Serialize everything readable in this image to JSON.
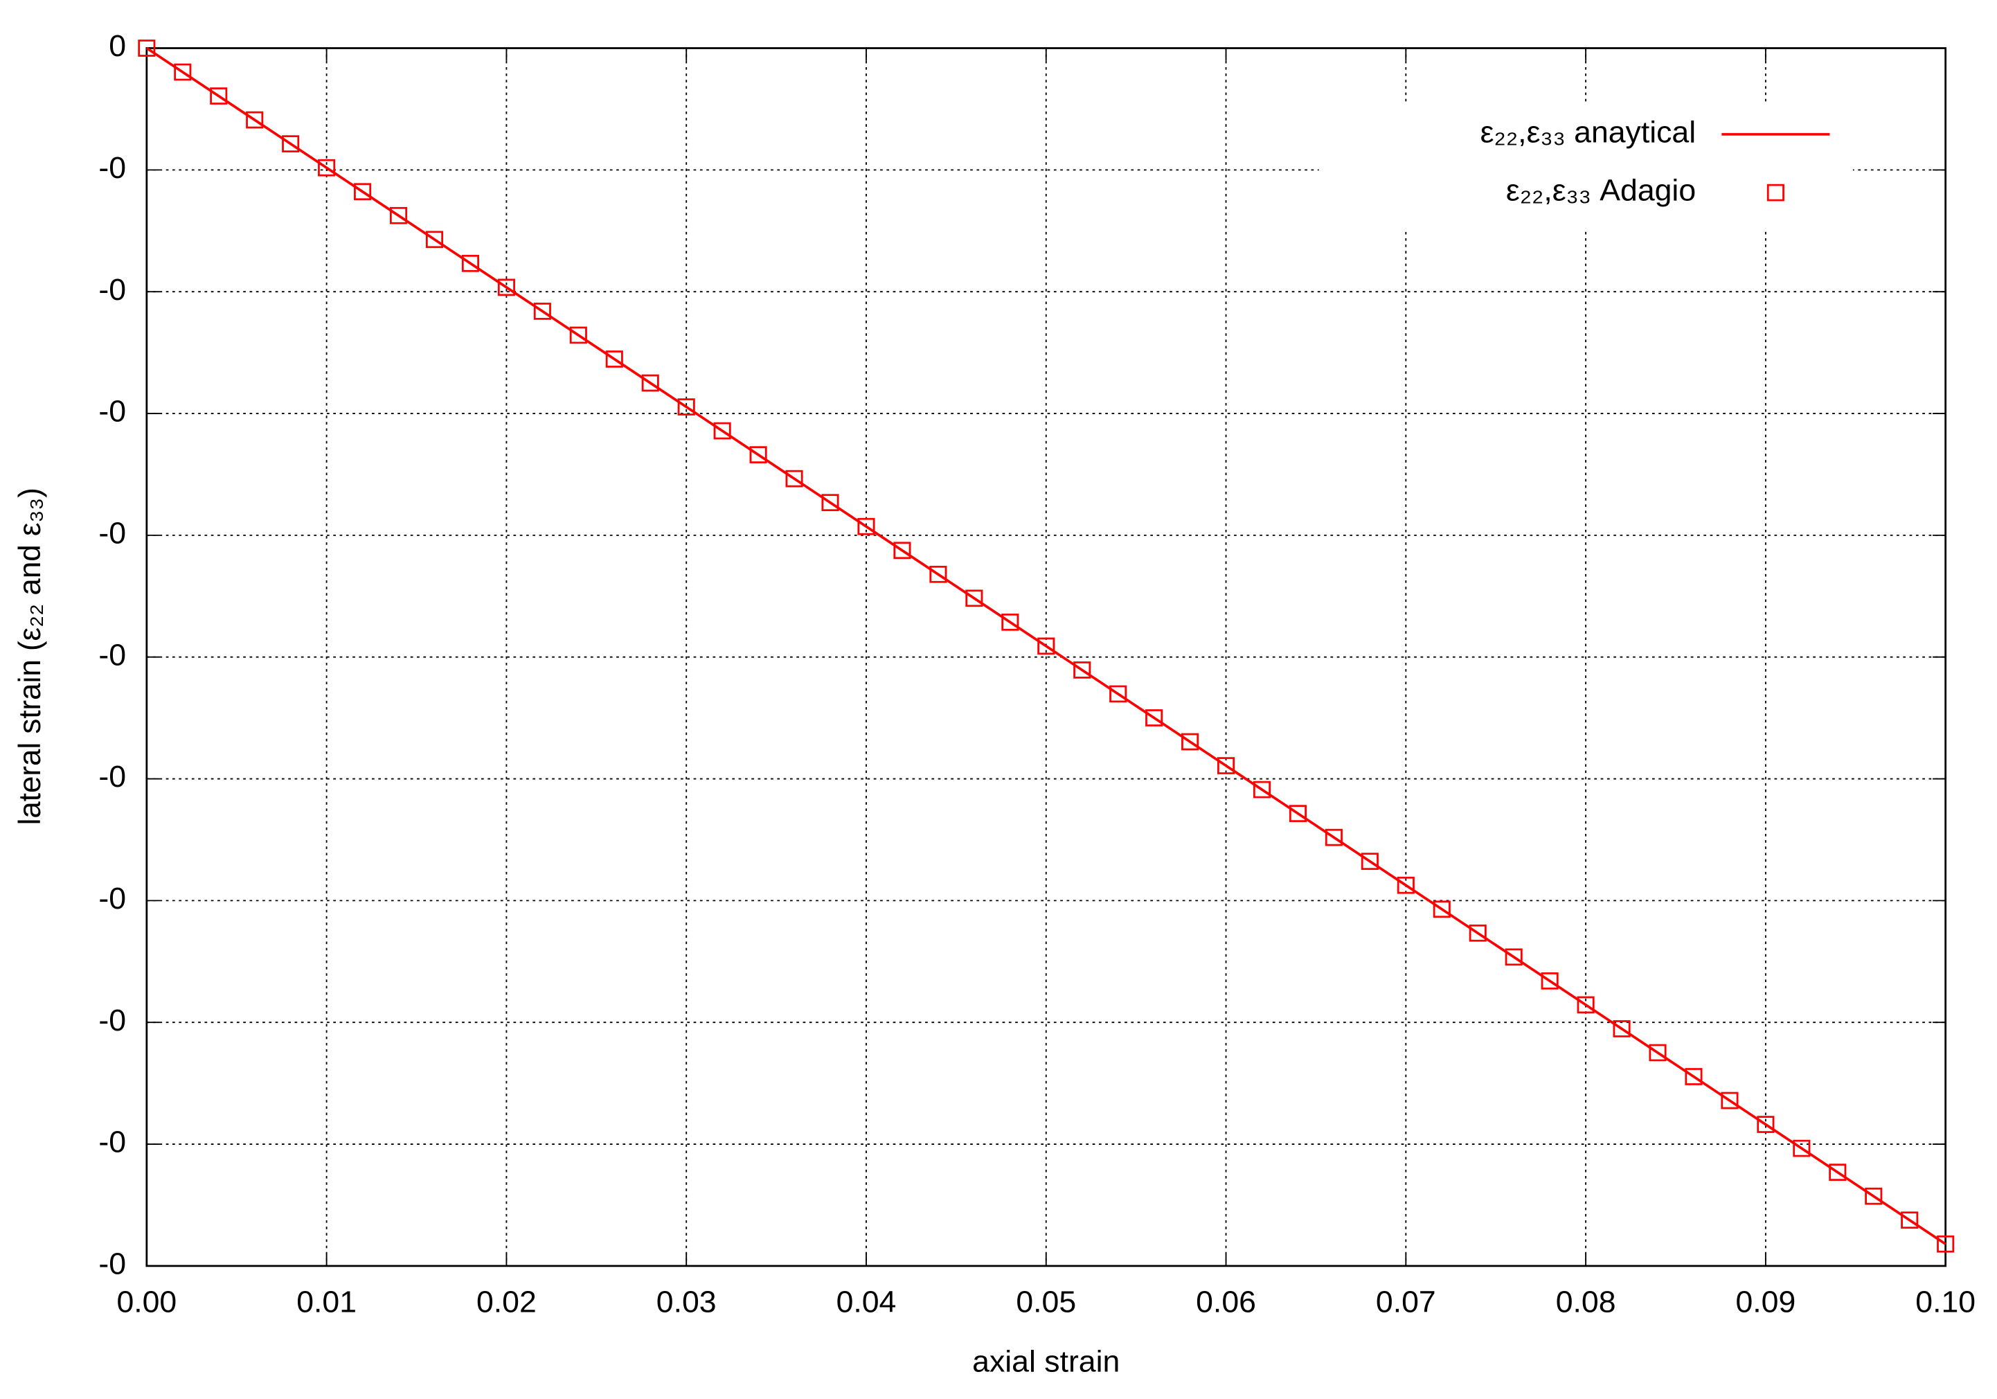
{
  "chart_data": {
    "type": "line",
    "xlabel": "axial strain",
    "ylabel": "lateral strain (ε₂₂ and ε₃₃)",
    "xlim": [
      0,
      0.1
    ],
    "ylim": [
      -0.05,
      0
    ],
    "xticks": [
      {
        "value": 0,
        "label": "0.00"
      },
      {
        "value": 0.01,
        "label": "0.01"
      },
      {
        "value": 0.02,
        "label": "0.02"
      },
      {
        "value": 0.03,
        "label": "0.03"
      },
      {
        "value": 0.04,
        "label": "0.04"
      },
      {
        "value": 0.05,
        "label": "0.05"
      },
      {
        "value": 0.06,
        "label": "0.06"
      },
      {
        "value": 0.07,
        "label": "0.07"
      },
      {
        "value": 0.08,
        "label": "0.08"
      },
      {
        "value": 0.09,
        "label": "0.09"
      },
      {
        "value": 0.1,
        "label": "0.10"
      }
    ],
    "yticks": [
      0,
      {
        "value": -0.005,
        "label": "-0"
      },
      {
        "value": -0.01,
        "label": "-0"
      },
      {
        "value": -0.015,
        "label": "-0"
      },
      {
        "value": -0.02,
        "label": "-0"
      },
      {
        "value": -0.025,
        "label": "-0"
      },
      {
        "value": -0.03,
        "label": "-0"
      },
      {
        "value": -0.035,
        "label": "-0"
      },
      {
        "value": -0.04,
        "label": "-0"
      },
      {
        "value": -0.045,
        "label": "-0"
      },
      {
        "value": -0.05,
        "label": "-0"
      }
    ],
    "grid": true,
    "legend": "upper right",
    "series": [
      {
        "name": "ε₂₂,ε₃₃ anaytical",
        "color": "#ff0000",
        "style": "line",
        "x": [
          0,
          0.1
        ],
        "values": [
          0,
          -0.0491
        ]
      },
      {
        "name": "ε₂₂,ε₃₃ Adagio",
        "color": "#ff0000",
        "style": "points",
        "x": [
          0,
          0.002,
          0.004,
          0.006,
          0.008,
          0.01,
          0.012,
          0.014,
          0.016,
          0.018,
          0.02,
          0.022,
          0.024,
          0.026,
          0.028,
          0.03,
          0.032,
          0.034,
          0.036,
          0.038,
          0.04,
          0.042,
          0.044,
          0.046,
          0.048,
          0.05,
          0.052,
          0.054,
          0.056,
          0.058,
          0.06,
          0.062,
          0.064,
          0.066,
          0.068,
          0.07,
          0.072,
          0.074,
          0.076,
          0.078,
          0.08,
          0.082,
          0.084,
          0.086,
          0.088,
          0.09,
          0.092,
          0.094,
          0.096,
          0.098,
          0.1
        ],
        "values": [
          0,
          -0.000982,
          -0.001964,
          -0.002946,
          -0.003928,
          -0.00491,
          -0.005892,
          -0.006874,
          -0.007856,
          -0.008838,
          -0.00982,
          -0.010802,
          -0.011784,
          -0.012766,
          -0.013748,
          -0.01473,
          -0.015712,
          -0.016694,
          -0.017676,
          -0.018658,
          -0.01964,
          -0.020622,
          -0.021604,
          -0.022586,
          -0.023568,
          -0.02455,
          -0.025532,
          -0.026514,
          -0.027496,
          -0.028478,
          -0.02946,
          -0.030442,
          -0.031424,
          -0.032406,
          -0.033388,
          -0.03437,
          -0.035352,
          -0.036334,
          -0.037316,
          -0.038298,
          -0.03928,
          -0.040262,
          -0.041244,
          -0.042226,
          -0.043208,
          -0.04419,
          -0.045172,
          -0.046154,
          -0.047136,
          -0.048118,
          -0.0491
        ]
      }
    ]
  }
}
